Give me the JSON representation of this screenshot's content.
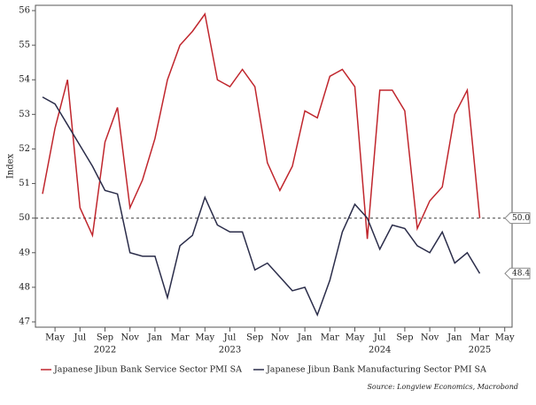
{
  "chart_data": {
    "type": "line",
    "y_label": "Index",
    "source": "Source: Longview Economics, Macrobond",
    "categories": [
      null,
      "May",
      null,
      "Jul",
      null,
      "Sep",
      null,
      "Nov",
      null,
      "Jan",
      null,
      "Mar",
      null,
      "May",
      null,
      "Jul",
      null,
      "Sep",
      null,
      "Nov",
      null,
      "Jan",
      null,
      "Mar",
      null,
      "May",
      null,
      "Jul",
      null,
      "Sep",
      null,
      "Nov",
      null,
      "Jan",
      null,
      "Mar",
      null,
      "May"
    ],
    "year_labels": [
      null,
      null,
      null,
      null,
      null,
      "2022",
      null,
      null,
      null,
      null,
      null,
      null,
      null,
      null,
      null,
      "2023",
      null,
      null,
      null,
      null,
      null,
      null,
      null,
      null,
      null,
      null,
      null,
      "2024",
      null,
      null,
      null,
      null,
      null,
      null,
      null,
      "2025",
      null,
      null
    ],
    "series": [
      {
        "name": "Japanese Jibun Bank Service Sector PMI SA",
        "color": "#c0262d",
        "end_label": "50.0",
        "values": [
          50.7,
          52.6,
          54.0,
          50.3,
          49.5,
          52.2,
          53.2,
          50.3,
          51.1,
          52.3,
          54.0,
          55.0,
          55.4,
          55.9,
          54.0,
          53.8,
          54.3,
          53.8,
          51.6,
          50.8,
          51.5,
          53.1,
          52.9,
          54.1,
          54.3,
          53.8,
          49.4,
          53.7,
          53.7,
          53.1,
          49.7,
          50.5,
          50.9,
          53.0,
          53.7,
          50.0,
          null,
          null
        ]
      },
      {
        "name": "Japanese Jibun Bank Manufacturing Sector PMI SA",
        "color": "#2b2d4a",
        "end_label": "48.4",
        "values": [
          53.5,
          53.3,
          52.7,
          52.1,
          51.5,
          50.8,
          50.7,
          49.0,
          48.9,
          48.9,
          47.7,
          49.2,
          49.5,
          50.6,
          49.8,
          49.6,
          49.6,
          48.5,
          48.7,
          48.3,
          47.9,
          48.0,
          47.2,
          48.2,
          49.6,
          50.4,
          50.0,
          49.1,
          49.8,
          49.7,
          49.2,
          49.0,
          49.6,
          48.7,
          49.0,
          48.4,
          null,
          null
        ]
      }
    ],
    "ylim": [
      47,
      56
    ],
    "yticks": [
      47,
      48,
      49,
      50,
      51,
      52,
      53,
      54,
      55,
      56
    ],
    "reference_line": 50,
    "grid": false
  }
}
